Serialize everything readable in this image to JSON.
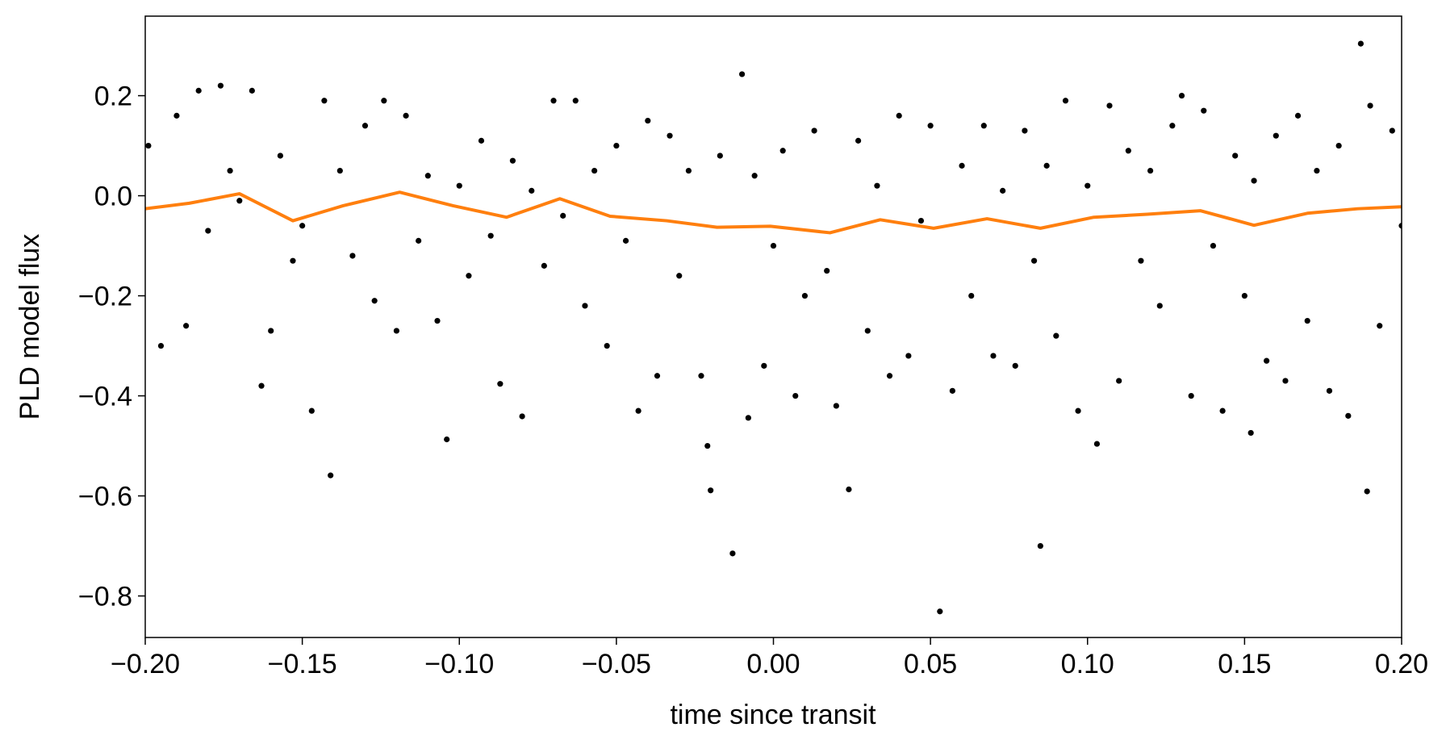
{
  "chart_data": {
    "type": "scatter",
    "xlabel": "time since transit",
    "ylabel": "PLD model flux",
    "xlim": [
      -0.2,
      0.2
    ],
    "ylim": [
      -0.883,
      0.359
    ],
    "xticks": [
      {
        "value": -0.2,
        "label": "−0.20"
      },
      {
        "value": -0.15,
        "label": "−0.15"
      },
      {
        "value": -0.1,
        "label": "−0.10"
      },
      {
        "value": -0.05,
        "label": "−0.05"
      },
      {
        "value": 0,
        "label": "0.00"
      },
      {
        "value": 0.05,
        "label": "0.05"
      },
      {
        "value": 0.1,
        "label": "0.10"
      },
      {
        "value": 0.15,
        "label": "0.15"
      },
      {
        "value": 0.2,
        "label": "0.20"
      }
    ],
    "yticks": [
      {
        "value": -0.8,
        "label": "−0.8"
      },
      {
        "value": -0.6,
        "label": "−0.6"
      },
      {
        "value": -0.4,
        "label": "−0.4"
      },
      {
        "value": -0.2,
        "label": "−0.2"
      },
      {
        "value": 0,
        "label": "0.0"
      },
      0.2
    ],
    "series": [
      {
        "type": "scatter",
        "color": "#000000",
        "x": [
          -0.199,
          -0.195,
          -0.19,
          -0.187,
          -0.183,
          -0.18,
          -0.176,
          -0.173,
          -0.17,
          -0.166,
          -0.163,
          -0.16,
          -0.157,
          -0.153,
          -0.15,
          -0.147,
          -0.143,
          -0.141,
          -0.138,
          -0.134,
          -0.13,
          -0.127,
          -0.124,
          -0.12,
          -0.117,
          -0.113,
          -0.11,
          -0.107,
          -0.104,
          -0.1,
          -0.097,
          -0.093,
          -0.09,
          -0.087,
          -0.083,
          -0.08,
          -0.077,
          -0.073,
          -0.07,
          -0.067,
          -0.063,
          -0.06,
          -0.057,
          -0.053,
          -0.05,
          -0.047,
          -0.043,
          -0.04,
          -0.037,
          -0.033,
          -0.03,
          -0.027,
          -0.023,
          -0.021,
          -0.02,
          -0.017,
          -0.013,
          -0.01,
          -0.008,
          -0.006,
          -0.003,
          0.0,
          0.003,
          0.007,
          0.01,
          0.013,
          0.017,
          0.02,
          0.024,
          0.027,
          0.03,
          0.033,
          0.037,
          0.04,
          0.043,
          0.047,
          0.05,
          0.053,
          0.057,
          0.06,
          0.063,
          0.067,
          0.07,
          0.073,
          0.077,
          0.08,
          0.083,
          0.085,
          0.087,
          0.09,
          0.093,
          0.097,
          0.1,
          0.103,
          0.107,
          0.11,
          0.113,
          0.117,
          0.12,
          0.123,
          0.127,
          0.13,
          0.133,
          0.137,
          0.14,
          0.143,
          0.147,
          0.15,
          0.152,
          0.153,
          0.157,
          0.16,
          0.163,
          0.167,
          0.17,
          0.173,
          0.177,
          0.18,
          0.183,
          0.187,
          0.189,
          0.19,
          0.193,
          0.197,
          0.2
        ],
        "values": [
          0.1,
          -0.3,
          0.16,
          -0.26,
          0.21,
          -0.07,
          0.22,
          0.05,
          -0.01,
          0.21,
          -0.38,
          -0.27,
          0.08,
          -0.13,
          -0.06,
          -0.43,
          0.19,
          -0.559,
          0.05,
          -0.12,
          0.14,
          -0.21,
          0.19,
          -0.27,
          0.16,
          -0.09,
          0.04,
          -0.25,
          -0.487,
          0.02,
          -0.16,
          0.11,
          -0.08,
          -0.376,
          0.07,
          -0.441,
          0.01,
          -0.14,
          0.19,
          -0.04,
          0.19,
          -0.22,
          0.05,
          -0.3,
          0.1,
          -0.09,
          -0.43,
          0.15,
          -0.36,
          0.12,
          -0.16,
          0.05,
          -0.36,
          -0.5,
          -0.589,
          0.08,
          -0.715,
          0.243,
          -0.444,
          0.04,
          -0.34,
          -0.1,
          0.09,
          -0.4,
          -0.2,
          0.13,
          -0.15,
          -0.42,
          -0.587,
          0.11,
          -0.27,
          0.02,
          -0.36,
          0.16,
          -0.32,
          -0.05,
          0.14,
          -0.831,
          -0.39,
          0.06,
          -0.2,
          0.14,
          -0.32,
          0.01,
          -0.34,
          0.13,
          -0.13,
          -0.7,
          0.06,
          -0.28,
          0.19,
          -0.43,
          0.02,
          -0.496,
          0.18,
          -0.37,
          0.09,
          -0.13,
          0.05,
          -0.22,
          0.14,
          0.2,
          -0.4,
          0.17,
          -0.1,
          -0.43,
          0.08,
          -0.2,
          -0.474,
          0.03,
          -0.33,
          0.12,
          -0.37,
          0.16,
          -0.25,
          0.05,
          -0.39,
          0.1,
          -0.44,
          0.304,
          -0.591,
          0.18,
          -0.26,
          0.13,
          -0.06
        ]
      },
      {
        "type": "line",
        "color": "#ff7f0e",
        "x": [
          -0.2,
          -0.186,
          -0.17,
          -0.153,
          -0.137,
          -0.119,
          -0.102,
          -0.085,
          -0.068,
          -0.052,
          -0.034,
          -0.018,
          -0.001,
          0.018,
          0.034,
          0.051,
          0.068,
          0.085,
          0.102,
          0.119,
          0.136,
          0.153,
          0.17,
          0.186,
          0.2
        ],
        "values": [
          -0.026,
          -0.015,
          0.004,
          -0.05,
          -0.02,
          0.007,
          -0.02,
          -0.043,
          -0.006,
          -0.041,
          -0.05,
          -0.063,
          -0.061,
          -0.074,
          -0.048,
          -0.065,
          -0.046,
          -0.065,
          -0.043,
          -0.037,
          -0.03,
          -0.059,
          -0.035,
          -0.026,
          -0.022
        ]
      }
    ]
  }
}
